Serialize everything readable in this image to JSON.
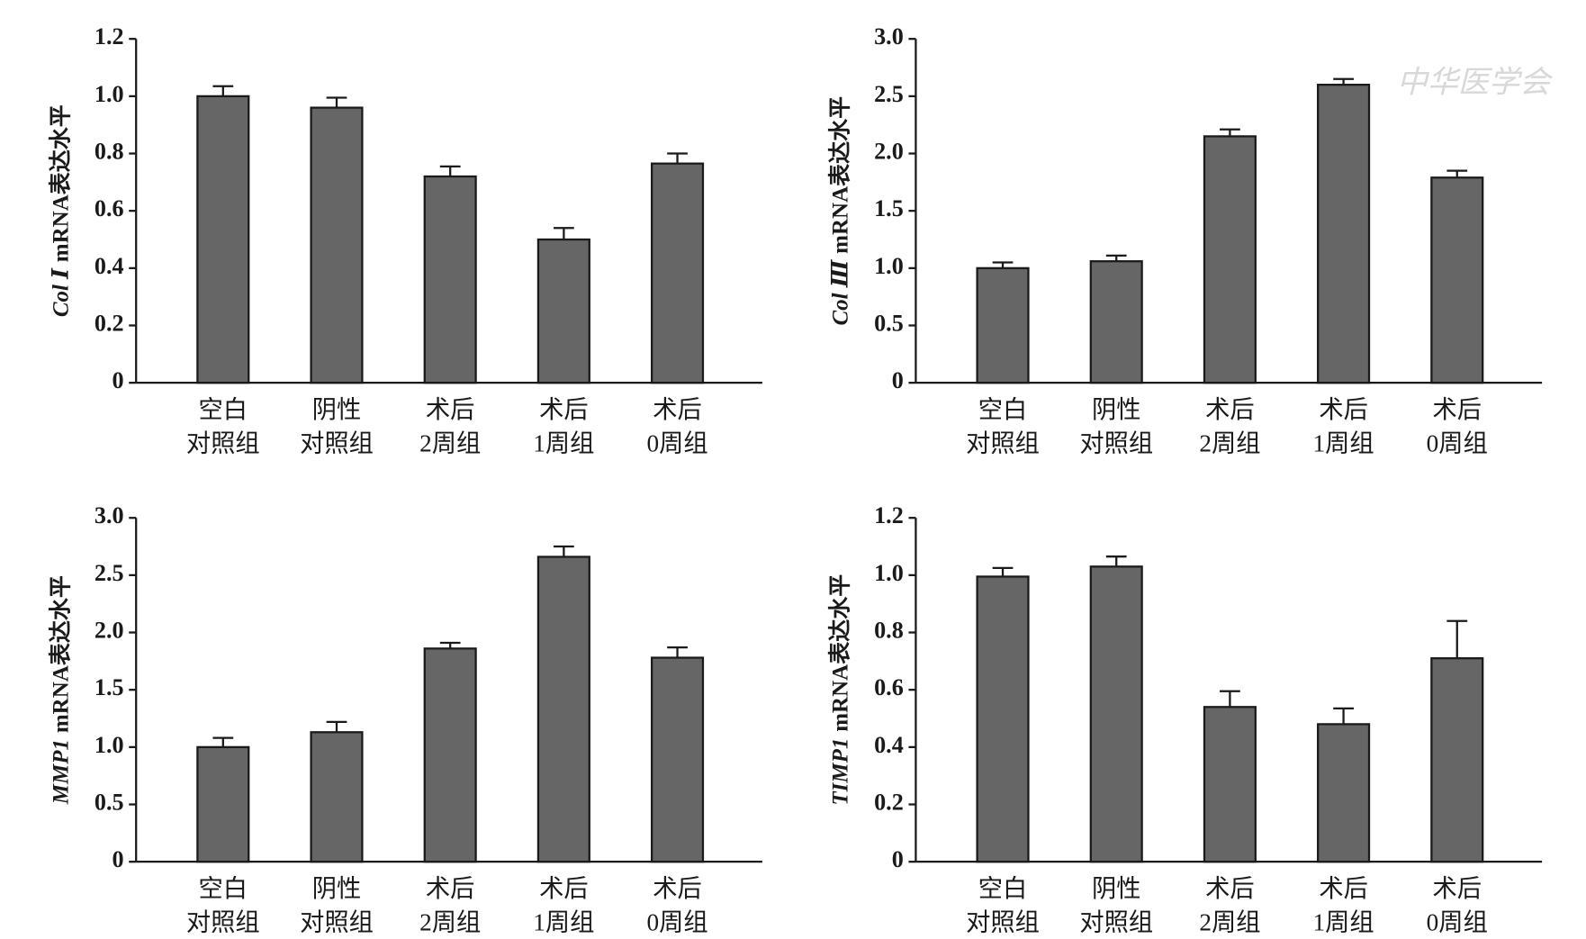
{
  "watermark": "中华医学会",
  "chart_data": [
    {
      "type": "bar",
      "ylabel": {
        "gene": "Col Ⅰ",
        "text": "mRNA表达水平"
      },
      "categories": [
        [
          "空白",
          "对照组"
        ],
        [
          "阴性",
          "对照组"
        ],
        [
          "术后",
          "2周组"
        ],
        [
          "术后",
          "1周组"
        ],
        [
          "术后",
          "0周组"
        ]
      ],
      "values": [
        1.0,
        0.96,
        0.72,
        0.5,
        0.765
      ],
      "errors": [
        0.035,
        0.035,
        0.035,
        0.04,
        0.035
      ],
      "color": "#666666",
      "ylim": [
        0,
        1.2
      ],
      "yticks": [
        0,
        0.2,
        0.4,
        0.6,
        0.8,
        {
          "value": 1,
          "label": "1.0"
        },
        1.2
      ]
    },
    {
      "type": "bar",
      "ylabel": {
        "gene": "Col Ⅲ",
        "text": "mRNA表达水平"
      },
      "categories": [
        [
          "空白",
          "对照组"
        ],
        [
          "阴性",
          "对照组"
        ],
        [
          "术后",
          "2周组"
        ],
        [
          "术后",
          "1周组"
        ],
        [
          "术后",
          "0周组"
        ]
      ],
      "values": [
        1.0,
        1.06,
        2.15,
        2.6,
        1.79
      ],
      "errors": [
        0.05,
        0.05,
        0.06,
        0.05,
        0.06
      ],
      "color": "#666666",
      "ylim": [
        0,
        3
      ],
      "yticks": [
        0,
        0.5,
        {
          "value": 1,
          "label": "1.0"
        },
        1.5,
        {
          "value": 2,
          "label": "2.0"
        },
        2.5,
        {
          "value": 3,
          "label": "3.0"
        }
      ]
    },
    {
      "type": "bar",
      "ylabel": {
        "gene": "MMP1",
        "text": "mRNA表达水平"
      },
      "categories": [
        [
          "空白",
          "对照组"
        ],
        [
          "阴性",
          "对照组"
        ],
        [
          "术后",
          "2周组"
        ],
        [
          "术后",
          "1周组"
        ],
        [
          "术后",
          "0周组"
        ]
      ],
      "values": [
        1.0,
        1.13,
        1.86,
        2.66,
        1.78
      ],
      "errors": [
        0.08,
        0.09,
        0.05,
        0.09,
        0.09
      ],
      "color": "#666666",
      "ylim": [
        0,
        3
      ],
      "yticks": [
        0,
        0.5,
        {
          "value": 1,
          "label": "1.0"
        },
        1.5,
        {
          "value": 2,
          "label": "2.0"
        },
        2.5,
        {
          "value": 3,
          "label": "3.0"
        }
      ]
    },
    {
      "type": "bar",
      "ylabel": {
        "gene": "TIMP1",
        "text": "mRNA表达水平"
      },
      "categories": [
        [
          "空白",
          "对照组"
        ],
        [
          "阴性",
          "对照组"
        ],
        [
          "术后",
          "2周组"
        ],
        [
          "术后",
          "1周组"
        ],
        [
          "术后",
          "0周组"
        ]
      ],
      "values": [
        0.995,
        1.03,
        0.54,
        0.48,
        0.71
      ],
      "errors": [
        0.03,
        0.035,
        0.055,
        0.055,
        0.13
      ],
      "color": "#666666",
      "ylim": [
        0,
        1.2
      ],
      "yticks": [
        0,
        0.2,
        0.4,
        0.6,
        0.8,
        {
          "value": 1,
          "label": "1.0"
        },
        1.2
      ]
    }
  ]
}
